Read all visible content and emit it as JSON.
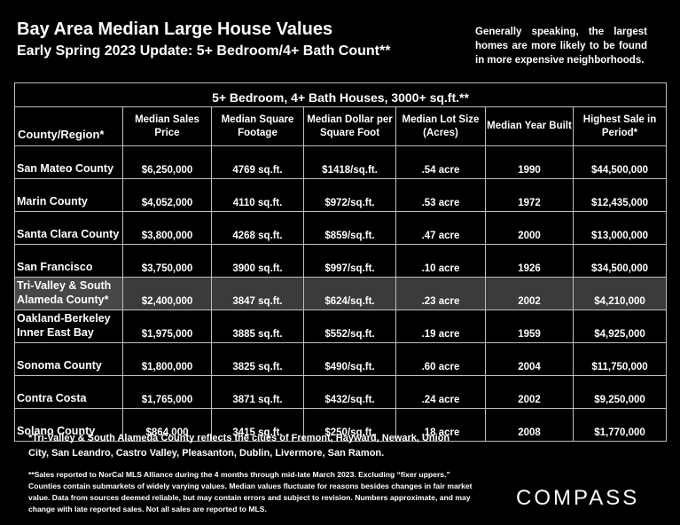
{
  "header": {
    "title": "Bay Area Median Large House Values",
    "subtitle": "Early Spring 2023 Update: 5+ Bedroom/4+ Bath Count**",
    "side_note": "Generally speaking, the largest homes are more likely to be found in more expensive neighborhoods."
  },
  "table": {
    "caption": "5+ Bedroom, 4+ Bath Houses, 3000+ sq.ft.**",
    "columns": [
      "County/Region*",
      "Median Sales Price",
      "Median Square Footage",
      "Median Dollar per Square Foot",
      "Median Lot Size (Acres)",
      "Median Year Built",
      "Highest Sale in Period*"
    ],
    "rows": [
      {
        "region": "San Mateo County",
        "price": "$6,250,000",
        "sqft": "4769 sq.ft.",
        "ppsf": "$1418/sq.ft.",
        "lot": ".54 acre",
        "year": "1990",
        "highest": "$44,500,000"
      },
      {
        "region": "Marin County",
        "price": "$4,052,000",
        "sqft": "4110 sq.ft.",
        "ppsf": "$972/sq.ft.",
        "lot": ".53 acre",
        "year": "1972",
        "highest": "$12,435,000"
      },
      {
        "region": "Santa Clara County",
        "price": "$3,800,000",
        "sqft": "4268 sq.ft.",
        "ppsf": "$859/sq.ft.",
        "lot": ".47 acre",
        "year": "2000",
        "highest": "$13,000,000"
      },
      {
        "region": "San Francisco",
        "price": "$3,750,000",
        "sqft": "3900 sq.ft.",
        "ppsf": "$997/sq.ft.",
        "lot": ".10 acre",
        "year": "1926",
        "highest": "$34,500,000"
      },
      {
        "region": "Tri-Valley & South Alameda County*",
        "price": "$2,400,000",
        "sqft": "3847 sq.ft.",
        "ppsf": "$624/sq.ft.",
        "lot": ".23 acre",
        "year": "2002",
        "highest": "$4,210,000"
      },
      {
        "region": "Oakland-Berkeley Inner East Bay",
        "price": "$1,975,000",
        "sqft": "3885 sq.ft.",
        "ppsf": "$552/sq.ft.",
        "lot": ".19 acre",
        "year": "1959",
        "highest": "$4,925,000"
      },
      {
        "region": "Sonoma County",
        "price": "$1,800,000",
        "sqft": "3825 sq.ft.",
        "ppsf": "$490/sq.ft.",
        "lot": ".60 acre",
        "year": "2004",
        "highest": "$11,750,000"
      },
      {
        "region": "Contra Costa",
        "price": "$1,765,000",
        "sqft": "3871 sq.ft.",
        "ppsf": "$432/sq.ft.",
        "lot": ".24 acre",
        "year": "2002",
        "highest": "$9,250,000"
      },
      {
        "region": "Solano County",
        "price": "$864,000",
        "sqft": "3415 sq.ft.",
        "ppsf": "$250/sq.ft.",
        "lot": ".18 acre",
        "year": "2008",
        "highest": "$1,770,000"
      }
    ],
    "highlight_row_color": "#3b3b3b"
  },
  "footnotes": {
    "region_note": "*Tri-Valley & South Alameda County reflects the cities of Fremont, Hayward, Newark, Union City, San Leandro, Castro Valley, Pleasanton, Dublin, Livermore, San Ramon.",
    "data_note": "**Sales reported to NorCal MLS Alliance during the 4 months through mid-late March 2023. Excluding “fixer uppers.” Counties contain submarkets of widely varying values. Median values fluctuate for reasons besides changes in fair market value. Data from sources deemed reliable, but may contain errors and subject to revision.  Numbers approximate, and may change with late reported sales. Not all sales are reported to MLS."
  },
  "brand": {
    "logo": "COMPASS"
  }
}
